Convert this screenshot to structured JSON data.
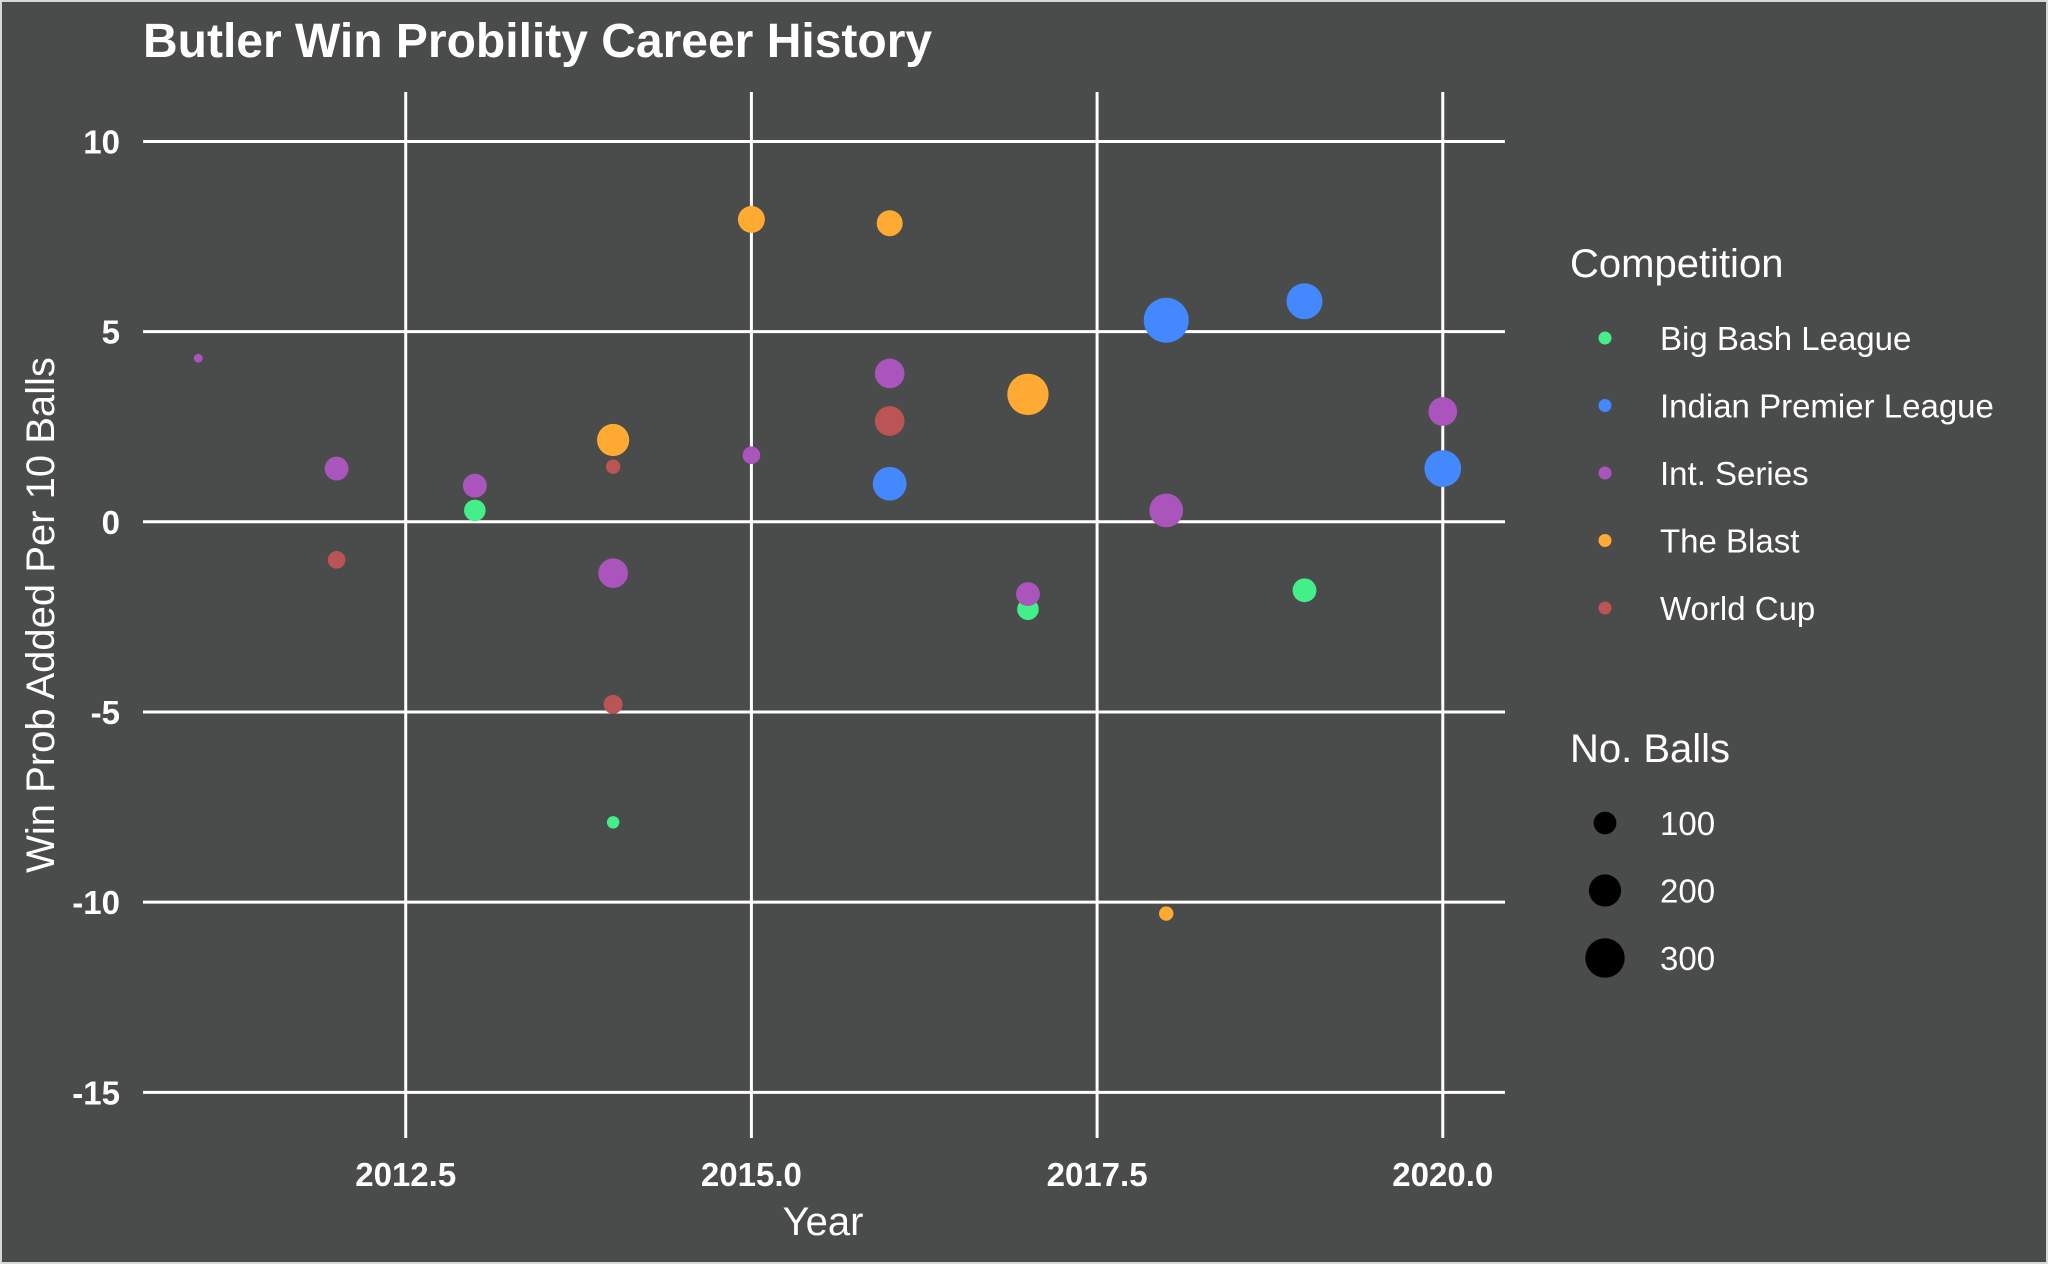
{
  "chart_data": {
    "type": "scatter",
    "title": "Butler Win Probility Career History",
    "xlabel": "Year",
    "ylabel": "Win Prob Added Per 10 Balls",
    "xlim": [
      2010.6,
      2020.45
    ],
    "ylim": [
      -16.2,
      11.3
    ],
    "x_ticks": [
      2012.5,
      2015.0,
      2017.5,
      2020.0
    ],
    "x_tick_labels": [
      "2012.5",
      "2015.0",
      "2017.5",
      "2020.0"
    ],
    "y_ticks": [
      10,
      5,
      0,
      -5,
      -10,
      -15
    ],
    "y_tick_labels": [
      "10",
      "5",
      "0",
      "-5",
      "-10",
      "-15"
    ],
    "grid": true,
    "background_color": "#4a4b4b",
    "legend_placement": "right",
    "color_legend": {
      "title": "Competition",
      "entries": [
        {
          "name": "Big Bash League",
          "color": "#44ee88"
        },
        {
          "name": "Indian Premier League",
          "color": "#4488ff"
        },
        {
          "name": "Int. Series",
          "color": "#aa55bb"
        },
        {
          "name": "The Blast",
          "color": "#ffaa33"
        },
        {
          "name": "World Cup",
          "color": "#bb5555"
        }
      ]
    },
    "size_legend": {
      "title": "No. Balls",
      "values": [
        100,
        200,
        300
      ],
      "labels": [
        "100",
        "200",
        "300"
      ]
    },
    "series": [
      {
        "name": "Big Bash League",
        "points": [
          {
            "x": 2013,
            "y": 0.3,
            "balls": 90
          },
          {
            "x": 2014,
            "y": -7.9,
            "balls": 30
          },
          {
            "x": 2017,
            "y": -2.3,
            "balls": 90
          },
          {
            "x": 2019,
            "y": -1.8,
            "balls": 110
          }
        ]
      },
      {
        "name": "Indian Premier League",
        "points": [
          {
            "x": 2016,
            "y": 1.0,
            "balls": 220
          },
          {
            "x": 2018,
            "y": 5.3,
            "balls": 390
          },
          {
            "x": 2019,
            "y": 5.8,
            "balls": 250
          },
          {
            "x": 2020,
            "y": 1.4,
            "balls": 260
          }
        ]
      },
      {
        "name": "Int. Series",
        "points": [
          {
            "x": 2011,
            "y": 4.3,
            "balls": 15
          },
          {
            "x": 2012,
            "y": 1.4,
            "balls": 110
          },
          {
            "x": 2013,
            "y": 0.95,
            "balls": 110
          },
          {
            "x": 2014,
            "y": -1.35,
            "balls": 170
          },
          {
            "x": 2015,
            "y": 1.75,
            "balls": 60
          },
          {
            "x": 2016,
            "y": 3.9,
            "balls": 170
          },
          {
            "x": 2017,
            "y": -1.9,
            "balls": 110
          },
          {
            "x": 2018,
            "y": 0.3,
            "balls": 220
          },
          {
            "x": 2020,
            "y": 2.9,
            "balls": 160
          }
        ]
      },
      {
        "name": "The Blast",
        "points": [
          {
            "x": 2014,
            "y": 2.15,
            "balls": 200
          },
          {
            "x": 2015,
            "y": 7.95,
            "balls": 140
          },
          {
            "x": 2016,
            "y": 7.85,
            "balls": 130
          },
          {
            "x": 2017,
            "y": 3.35,
            "balls": 330
          },
          {
            "x": 2018,
            "y": -10.3,
            "balls": 40
          }
        ]
      },
      {
        "name": "World Cup",
        "points": [
          {
            "x": 2012,
            "y": -1.0,
            "balls": 60
          },
          {
            "x": 2014,
            "y": 1.45,
            "balls": 40
          },
          {
            "x": 2014,
            "y": -4.8,
            "balls": 70
          },
          {
            "x": 2016,
            "y": 2.65,
            "balls": 170
          }
        ]
      }
    ]
  }
}
